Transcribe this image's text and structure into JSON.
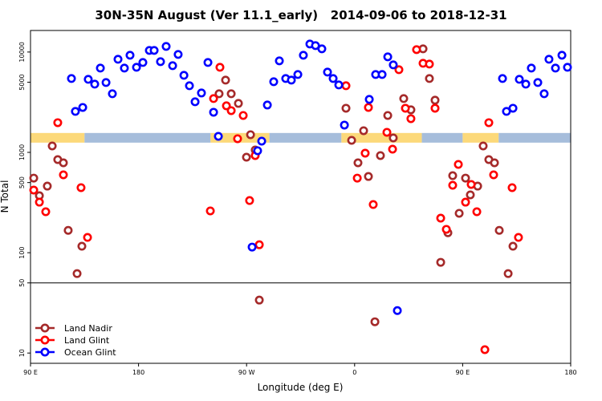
{
  "chart_data": {
    "type": "scatter",
    "title": "30N-35N August (Ver 11.1_early)   2014-09-06 to 2018-12-31",
    "x_label": "Longitude (deg E)",
    "y_label": "N Total",
    "log_y": true,
    "xlim": [
      90,
      540
    ],
    "xticks": [
      {
        "value": 90,
        "label": "90 E"
      },
      180,
      {
        "value": 270,
        "label": "90 W"
      },
      {
        "value": 360,
        "label": "0"
      },
      {
        "value": 450,
        "label": "90 E"
      },
      {
        "value": 540,
        "label": "180"
      }
    ],
    "ylim": [
      7.9,
      16400
    ],
    "yticks": [
      10,
      50,
      100,
      500,
      1000,
      5000,
      10000
    ],
    "hline": 50,
    "legend": "lower left",
    "band": {
      "ylim": [
        1250,
        1560
      ],
      "segments": [
        {
          "from": 90,
          "to": 135,
          "color": "#fcd97a"
        },
        {
          "from": 135,
          "to": 240,
          "color": "#a6bddb"
        },
        {
          "from": 240,
          "to": 289,
          "color": "#fcd97a"
        },
        {
          "from": 289,
          "to": 349,
          "color": "#a6bddb"
        },
        {
          "from": 349,
          "to": 416,
          "color": "#fcd97a"
        },
        {
          "from": 416,
          "to": 450,
          "color": "#a6bddb"
        },
        {
          "from": 450,
          "to": 480,
          "color": "#fcd97a"
        },
        {
          "from": 480,
          "to": 540,
          "color": "#a6bddb"
        }
      ]
    },
    "series": [
      {
        "name": "Land Nadir",
        "color": "#a52a2a",
        "x": [
          92.7,
          97.4,
          104,
          108.1,
          112.7,
          117.4,
          121.4,
          128.8,
          132.8,
          247.1,
          252.5,
          257.2,
          263.2,
          269.9,
          273.3,
          277.2,
          280.6,
          352.8,
          357.5,
          362.8,
          367.5,
          371.5,
          376.9,
          381.5,
          387.6,
          392.2,
          400.9,
          406.9,
          417,
          422.3,
          427,
          431.7,
          437.7,
          441.7,
          447.1,
          452.4,
          456.4,
          462.5,
          467.1,
          471.8,
          476.5,
          480.5,
          487.9,
          491.9
        ],
        "values": [
          554,
          370,
          461,
          1159,
          847,
          787,
          167,
          61.9,
          116,
          3837,
          5248,
          3837,
          3076,
          895,
          1500,
          1057,
          33.7,
          2754,
          1318,
          787,
          1644,
          575,
          20.5,
          929,
          2333,
          1393,
          3436,
          2655,
          10760,
          5445,
          3311,
          80.2,
          158,
          586,
          247,
          554,
          377,
          461,
          1159,
          847,
          787,
          167,
          61.9,
          116
        ]
      },
      {
        "name": "Land Glint",
        "color": "#ff0000",
        "x": [
          92.7,
          97.4,
          102.7,
          112.7,
          117.4,
          132.1,
          137.5,
          239.8,
          242.5,
          247.8,
          253.2,
          257.2,
          262.5,
          267.2,
          272.5,
          277.2,
          280.6,
          352.8,
          362.2,
          368.8,
          371.5,
          375.5,
          386.9,
          391.6,
          396.9,
          402.3,
          406.9,
          411.6,
          417,
          422.3,
          427,
          431.7,
          436.4,
          441.7,
          446.4,
          452.4,
          457.1,
          461.8,
          468.5,
          471.8,
          475.8,
          491.2,
          496.5
        ],
        "values": [
          421,
          319,
          256,
          1977,
          597,
          445,
          142,
          261,
          3436,
          7047,
          2911,
          2606,
          1368,
          2333,
          331,
          929,
          120,
          4613,
          554,
          982,
          2805,
          302,
          1585,
          1076,
          6668,
          2754,
          2168,
          10570,
          7727,
          7586,
          2754,
          221,
          171,
          470,
          759,
          319,
          479,
          256,
          10.8,
          1977,
          597,
          445,
          142
        ]
      },
      {
        "name": "Ocean Glint",
        "color": "#0000ff",
        "x": [
          124.1,
          127.4,
          133.5,
          138.1,
          143.5,
          148.2,
          152.9,
          158.2,
          162.9,
          168.2,
          172.9,
          178.3,
          183.6,
          189,
          193,
          198.3,
          203,
          208.4,
          213,
          217.8,
          222.4,
          227.1,
          232.4,
          237.8,
          242.5,
          246.5,
          274.6,
          279.2,
          282.6,
          287.3,
          292.6,
          297.3,
          302.6,
          307.3,
          312.7,
          317.3,
          322.7,
          327.4,
          332.7,
          337.4,
          342.1,
          346.8,
          351.5,
          372.2,
          377.5,
          382.9,
          387.6,
          392.2,
          395.6,
          483.2,
          486.5,
          491.9,
          497.2,
          502.6,
          507.2,
          512.6,
          517.9,
          521.9,
          527.3,
          532.7,
          537.3
        ],
        "values": [
          5445,
          2560,
          2805,
          5345,
          4786,
          6918,
          4966,
          3837,
          8472,
          6918,
          9290,
          7047,
          7870,
          10380,
          10380,
          8017,
          11380,
          7311,
          9462,
          5861,
          4613,
          3192,
          3908,
          7870,
          2512,
          1445,
          113.8,
          1038,
          1294,
          2965,
          5058,
          8166,
          5445,
          5248,
          5970,
          9290,
          12020,
          11590,
          10760,
          6310,
          5445,
          4699,
          1871,
          3373,
          5970,
          5970,
          8954,
          7447,
          26.5,
          5445,
          2560,
          2754,
          5345,
          4786,
          6918,
          4966,
          3837,
          8472,
          6918,
          9290,
          7047
        ]
      }
    ]
  }
}
